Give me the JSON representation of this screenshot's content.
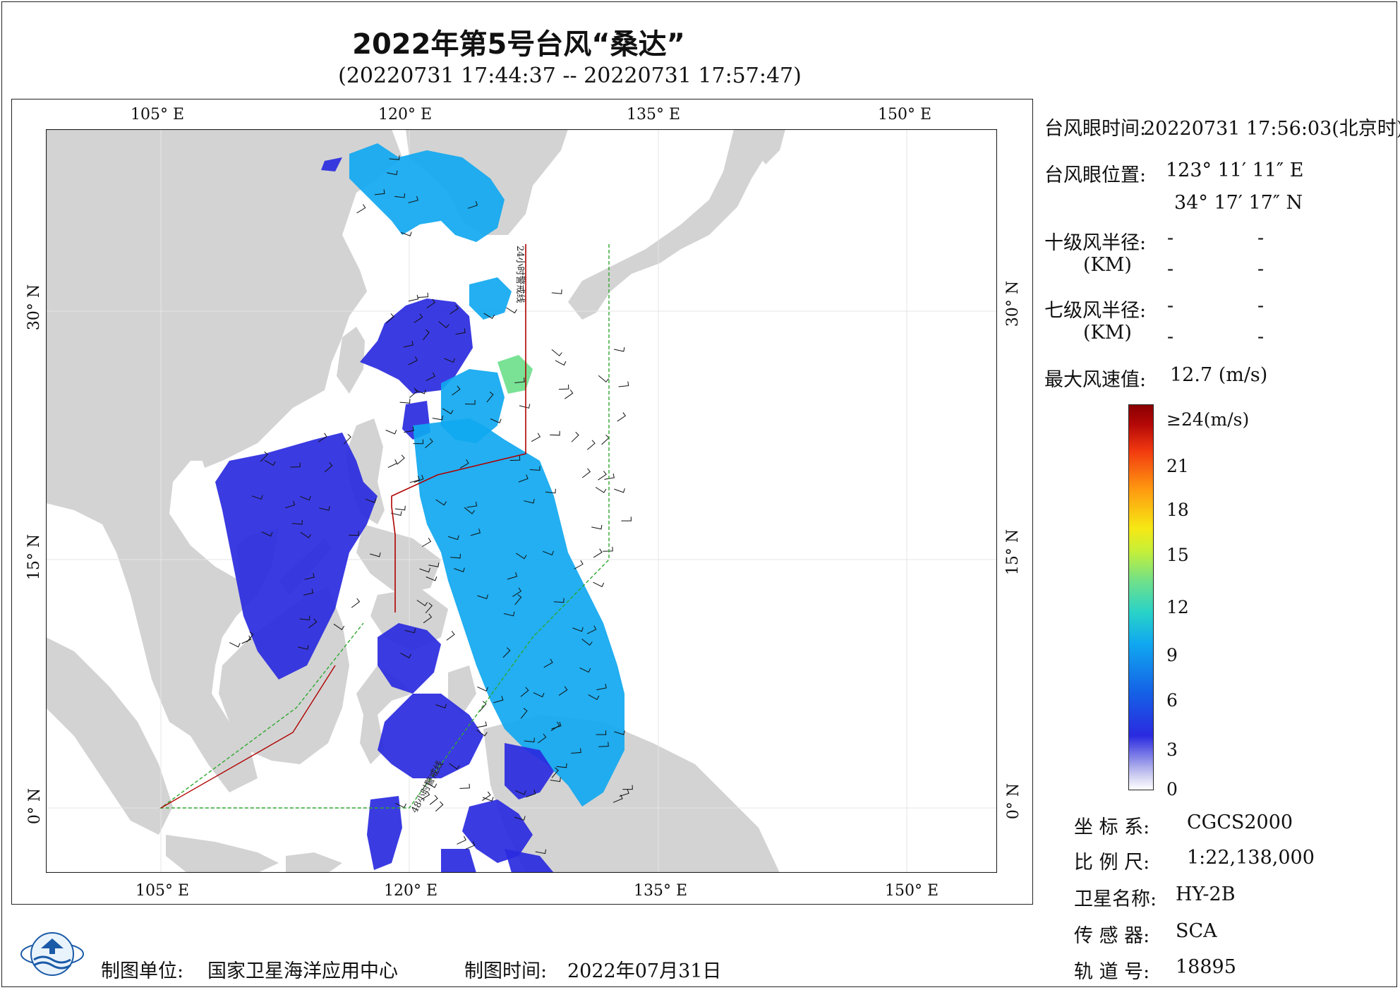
{
  "title": "2022年第5号台风“桑达”",
  "subtitle": "(20220731 17:44:37 -- 20220731 17:57:47)",
  "axes": {
    "top_lon": [
      "105° E",
      "120° E",
      "135° E",
      "150° E"
    ],
    "bottom_lon": [
      "105° E",
      "120° E",
      "135° E",
      "150° E"
    ],
    "left_lat": [
      "30° N",
      "15° N",
      "0° N"
    ],
    "right_lat": [
      "30° N",
      "15° N",
      "0° N"
    ]
  },
  "map_labels": {
    "line_24h": "24小时警戒线",
    "line_48h": "48小时警戒线"
  },
  "info": {
    "eye_time_label": "台风眼时间:",
    "eye_time_value": "20220731 17:56:03(北京时)",
    "eye_pos_label": "台风眼位置:",
    "eye_lon": "123° 11′ 11″ E",
    "eye_lat": "34° 17′ 17″ N",
    "r10_label": "十级风半径:",
    "r10_unit": "(KM)",
    "r7_label": "七级风半径:",
    "r7_unit": "(KM)",
    "dash": "-",
    "max_wind_label": "最大风速值:",
    "max_wind_value": "12.7  (m/s)"
  },
  "colorbar": {
    "labels": [
      "≥24(m/s)",
      "21",
      "18",
      "15",
      "12",
      "9",
      "6",
      "3",
      "0"
    ]
  },
  "meta": {
    "crs_label": "坐 标 系:",
    "crs_value": "CGCS2000",
    "scale_label": "比 例 尺:",
    "scale_value": "1:22,138,000",
    "satellite_label": "卫星名称:",
    "satellite_value": "HY-2B",
    "sensor_label": "传 感 器:",
    "sensor_value": "SCA",
    "orbit_label": "轨 道 号:",
    "orbit_value": "18895"
  },
  "footer": {
    "unit_label": "制图单位:",
    "unit_value": "国家卫星海洋应用中心",
    "time_label": "制图时间:",
    "time_value": "2022年07月31日"
  },
  "colors": {
    "land": "#d3d3d3",
    "sea": "#ffffff",
    "warning_24h": "#b00000",
    "warning_48h": "#2fa82f",
    "wind_low": "#2a2ae0",
    "wind_mid": "#10a8f0",
    "wind_high": "#6ee08c"
  }
}
